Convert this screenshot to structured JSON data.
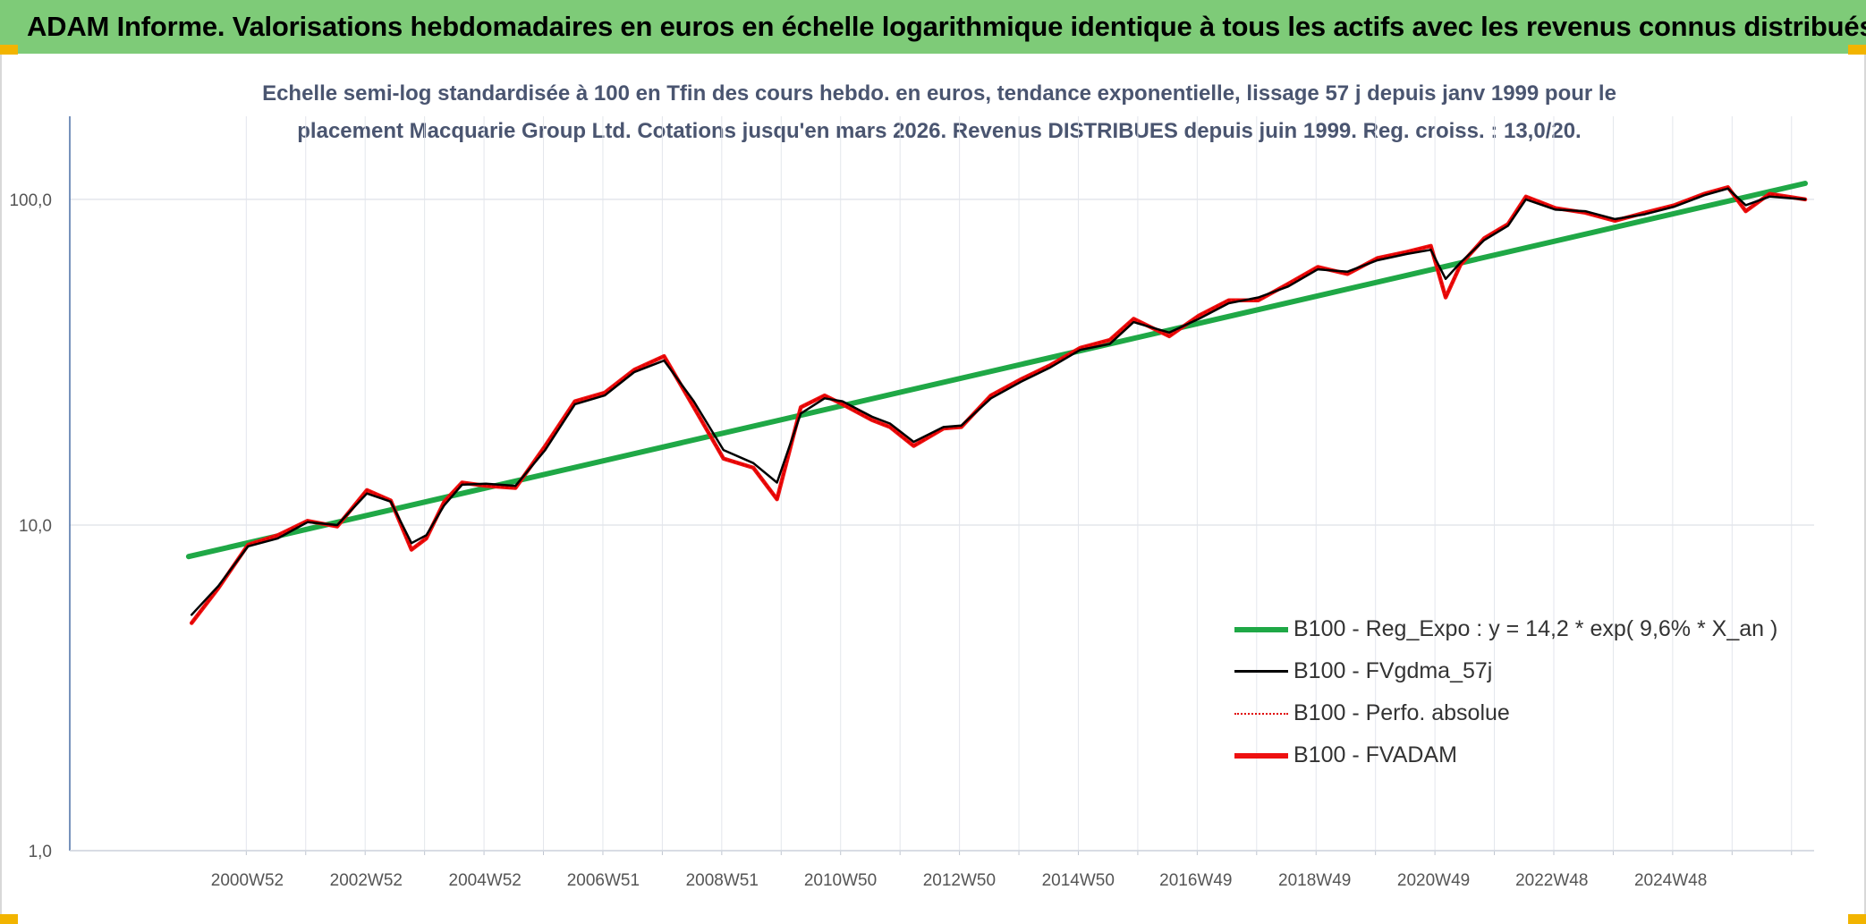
{
  "banner": {
    "title": "ADAM Informe. Valorisations hebdomadaires en euros en échelle logarithmique identique à tous les actifs avec les revenus connus distribués"
  },
  "subtitle": {
    "line1": "Echelle semi-log standardisée à 100 en Tfin des cours hebdo. en euros, tendance exponentielle, lissage 57 j depuis janv 1999 pour le",
    "line2": "placement Macquarie Group Ltd. Cotations jusqu'en mars 2026. Revenus DISTRIBUES depuis juin 1999. Reg. croiss. : 13,0/20."
  },
  "colors": {
    "banner": "#7ecb78",
    "corner": "#f2b400",
    "regression": "#1fa846",
    "smoothed": "#000000",
    "perfo": "#e00000",
    "fvadam": "#ee1111",
    "grid": "#e3e6ec",
    "axis": "#4a6fa5"
  },
  "chart_data": {
    "type": "line",
    "y_scale": "log",
    "ylim": [
      1,
      180
    ],
    "y_ticks": [
      {
        "value": 1,
        "label": "1,0"
      },
      {
        "value": 10,
        "label": "10,0"
      },
      {
        "value": 100,
        "label": "100,0"
      }
    ],
    "x_tick_labels": [
      "2000W52",
      "2002W52",
      "2004W52",
      "2006W51",
      "2008W51",
      "2010W50",
      "2012W50",
      "2014W50",
      "2016W49",
      "2018W49",
      "2020W49",
      "2022W48",
      "2024W48"
    ],
    "x_tick_years": [
      2000.98,
      2002.98,
      2004.98,
      2006.97,
      2008.97,
      2010.96,
      2012.96,
      2014.96,
      2016.94,
      2018.94,
      2020.94,
      2022.93,
      2024.93
    ],
    "xlim": [
      1997,
      2026.35
    ],
    "legend_position": "bottom-right",
    "series": [
      {
        "name": "B100 - Reg_Expo : y = 14,2 * exp( 9,6% *  X_an )",
        "style": "regression",
        "x": [
          1999.0,
          2026.2
        ],
        "y": [
          8.0,
          112.0
        ]
      },
      {
        "name": "B100 - FVgdma_57j",
        "style": "smoothed",
        "x": [
          1999.05,
          1999.5,
          2000.0,
          2000.5,
          2001.0,
          2001.5,
          2002.0,
          2002.4,
          2002.75,
          2003.0,
          2003.3,
          2003.6,
          2004.0,
          2004.5,
          2005.0,
          2005.5,
          2006.0,
          2006.5,
          2007.0,
          2007.5,
          2008.0,
          2008.5,
          2008.9,
          2009.3,
          2009.7,
          2010.0,
          2010.5,
          2010.8,
          2011.2,
          2011.7,
          2012.0,
          2012.5,
          2013.0,
          2013.5,
          2014.0,
          2014.5,
          2014.9,
          2015.5,
          2016.0,
          2016.5,
          2017.0,
          2017.5,
          2018.0,
          2018.5,
          2019.0,
          2019.5,
          2019.9,
          2020.15,
          2020.4,
          2020.8,
          2021.2,
          2021.5,
          2022.0,
          2022.5,
          2023.0,
          2023.5,
          2024.0,
          2024.5,
          2024.9,
          2025.2,
          2025.6,
          2026.2
        ],
        "y": [
          5.3,
          6.5,
          8.6,
          9.1,
          10.2,
          10.0,
          12.5,
          11.8,
          8.8,
          9.3,
          11.5,
          13.3,
          13.4,
          13.2,
          17.0,
          23.5,
          25.0,
          29.5,
          32.0,
          24.0,
          17.0,
          15.5,
          13.5,
          22.0,
          24.5,
          24.0,
          21.5,
          20.5,
          18.0,
          20.0,
          20.2,
          24.5,
          27.5,
          30.5,
          34.5,
          36.0,
          42.0,
          39.0,
          43.0,
          48.0,
          50.0,
          54.0,
          61.0,
          60.0,
          65.0,
          68.0,
          70.0,
          57.0,
          64.0,
          75.0,
          83.0,
          100.0,
          93.0,
          92.0,
          87.0,
          90.0,
          95.0,
          103.0,
          108.0,
          96.0,
          102.0,
          100.0
        ]
      },
      {
        "name": "B100 - Perfo. absolue",
        "style": "perfo",
        "x": [
          1999.05,
          1999.5,
          2000.0,
          2000.5,
          2001.0,
          2001.5,
          2002.0,
          2002.4,
          2002.75,
          2003.0,
          2003.3,
          2003.6,
          2004.0,
          2004.5,
          2005.0,
          2005.5,
          2006.0,
          2006.5,
          2007.0,
          2007.5,
          2008.0,
          2008.5,
          2008.9,
          2009.3,
          2009.7,
          2010.0,
          2010.5,
          2010.8,
          2011.2,
          2011.7,
          2012.0,
          2012.5,
          2013.0,
          2013.5,
          2014.0,
          2014.5,
          2014.9,
          2015.5,
          2016.0,
          2016.5,
          2017.0,
          2017.5,
          2018.0,
          2018.5,
          2019.0,
          2019.5,
          2019.9,
          2020.15,
          2020.4,
          2020.8,
          2021.2,
          2021.5,
          2022.0,
          2022.5,
          2023.0,
          2023.5,
          2024.0,
          2024.5,
          2024.9,
          2025.2,
          2025.6,
          2026.2
        ],
        "y": [
          5.0,
          6.4,
          8.7,
          9.3,
          10.3,
          9.9,
          12.8,
          11.9,
          8.4,
          9.1,
          11.8,
          13.5,
          13.2,
          13.0,
          17.5,
          24.0,
          25.5,
          30.0,
          33.0,
          23.0,
          16.0,
          15.0,
          12.0,
          23.0,
          25.0,
          23.5,
          21.0,
          20.0,
          17.5,
          19.8,
          20.0,
          25.0,
          28.0,
          31.0,
          35.0,
          37.0,
          43.0,
          38.0,
          44.0,
          49.0,
          49.0,
          55.0,
          62.0,
          59.0,
          66.0,
          69.0,
          72.0,
          50.0,
          63.0,
          76.0,
          84.0,
          102.0,
          94.0,
          91.0,
          86.0,
          91.0,
          96.0,
          104.0,
          109.0,
          92.0,
          104.0,
          100.0
        ]
      },
      {
        "name": "B100 - FVADAM",
        "style": "fvadam",
        "x": [
          1999.05,
          1999.5,
          2000.0,
          2000.5,
          2001.0,
          2001.5,
          2002.0,
          2002.4,
          2002.75,
          2003.0,
          2003.3,
          2003.6,
          2004.0,
          2004.5,
          2005.0,
          2005.5,
          2006.0,
          2006.5,
          2007.0,
          2007.5,
          2008.0,
          2008.5,
          2008.9,
          2009.3,
          2009.7,
          2010.0,
          2010.5,
          2010.8,
          2011.2,
          2011.7,
          2012.0,
          2012.5,
          2013.0,
          2013.5,
          2014.0,
          2014.5,
          2014.9,
          2015.5,
          2016.0,
          2016.5,
          2017.0,
          2017.5,
          2018.0,
          2018.5,
          2019.0,
          2019.5,
          2019.9,
          2020.15,
          2020.4,
          2020.8,
          2021.2,
          2021.5,
          2022.0,
          2022.5,
          2023.0,
          2023.5,
          2024.0,
          2024.5,
          2024.9,
          2025.2,
          2025.6,
          2026.2
        ],
        "y": [
          5.0,
          6.4,
          8.7,
          9.3,
          10.3,
          9.9,
          12.8,
          11.9,
          8.4,
          9.1,
          11.8,
          13.5,
          13.2,
          13.0,
          17.5,
          24.0,
          25.5,
          30.0,
          33.0,
          23.0,
          16.0,
          15.0,
          12.0,
          23.0,
          25.0,
          23.5,
          21.0,
          20.0,
          17.5,
          19.8,
          20.0,
          25.0,
          28.0,
          31.0,
          35.0,
          37.0,
          43.0,
          38.0,
          44.0,
          49.0,
          49.0,
          55.0,
          62.0,
          59.0,
          66.0,
          69.0,
          72.0,
          50.0,
          63.0,
          76.0,
          84.0,
          102.0,
          94.0,
          91.0,
          86.0,
          91.0,
          96.0,
          104.0,
          109.0,
          92.0,
          104.0,
          100.0
        ]
      }
    ]
  }
}
